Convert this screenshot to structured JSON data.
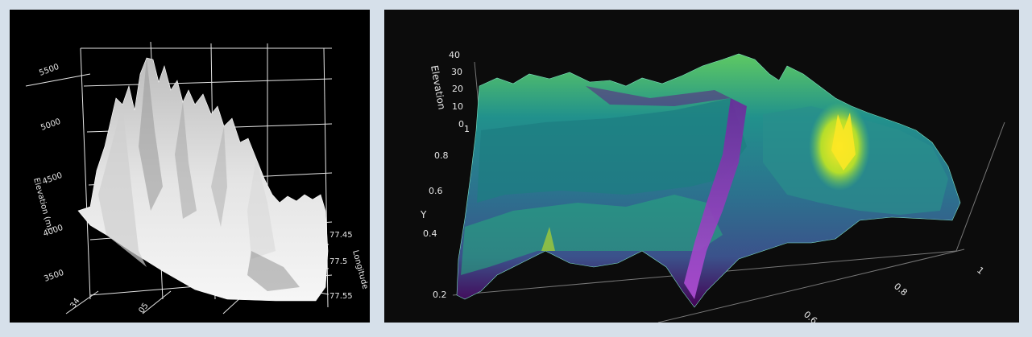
{
  "chart_data": [
    {
      "type": "surface",
      "colormap": "grayscale",
      "background": "#000000",
      "zlabel": "Elevation (m)",
      "xlabel": "Longitude",
      "z_ticks": [
        "3500",
        "4000",
        "4500",
        "5000",
        "5500"
      ],
      "longitude_ticks": [
        "77.45",
        "77.5",
        "77.55"
      ],
      "latitude_ticks": [
        "34",
        "05"
      ],
      "grid": true
    },
    {
      "type": "surface",
      "colormap": "viridis",
      "background": "#0c0c0c",
      "zlabel": "Elevation",
      "ylabel": "Y",
      "z_ticks": [
        "0",
        "10",
        "20",
        "30",
        "40"
      ],
      "y_ticks": [
        "0.2",
        "0.4",
        "0.6",
        "0.8",
        "1"
      ],
      "x_ticks": [
        "0.6",
        "0.8",
        "1"
      ],
      "grid": false
    }
  ]
}
